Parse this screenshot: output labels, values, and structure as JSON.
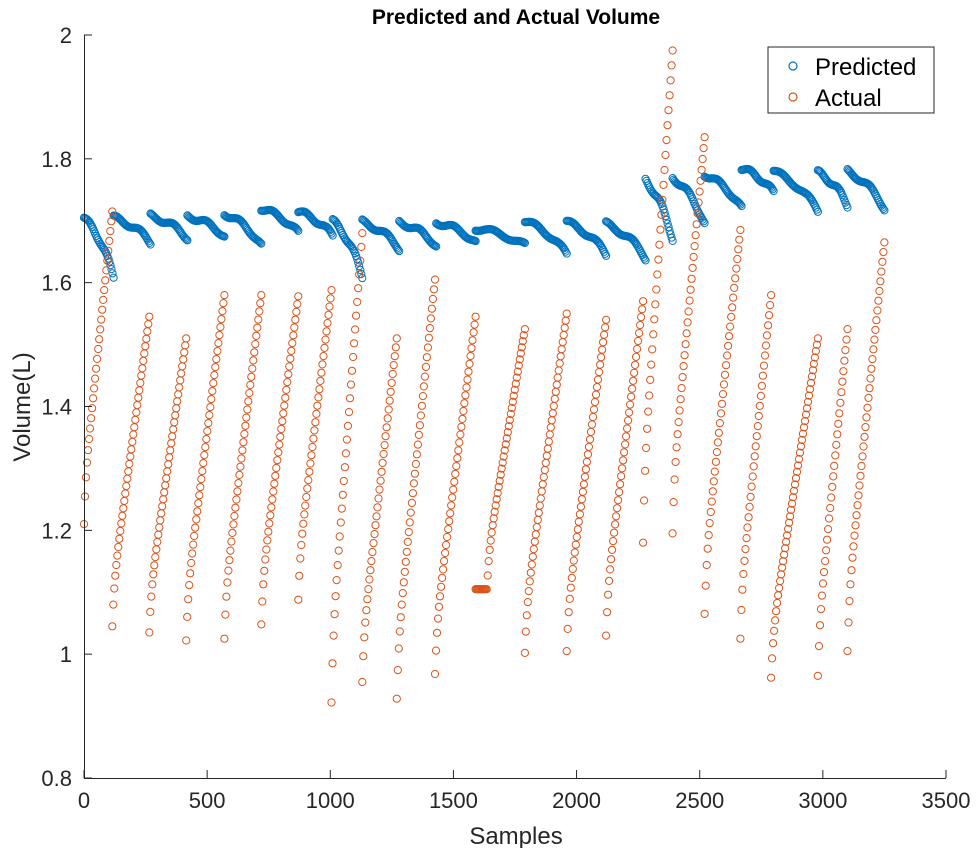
{
  "chart_data": {
    "type": "scatter",
    "title": "Predicted and Actual Volume",
    "xlabel": "Samples",
    "ylabel": "Volume(L)",
    "xlim": [
      0,
      3500
    ],
    "ylim": [
      0.8,
      2.0
    ],
    "x_ticks": [
      "0",
      "500",
      "1000",
      "1500",
      "2000",
      "2500",
      "3000",
      "3500"
    ],
    "y_ticks": [
      "0.8",
      "1",
      "1.2",
      "1.4",
      "1.6",
      "1.8",
      "2"
    ],
    "grid": false,
    "legend_position": "top-right",
    "marker": "open-circle",
    "series": [
      {
        "name": "Predicted",
        "color": "#0072BD",
        "segments": [
          {
            "x0": 0,
            "x1": 120,
            "y0": 1.705,
            "y1": 1.608
          },
          {
            "x0": 120,
            "x1": 270,
            "y0": 1.705,
            "y1": 1.665
          },
          {
            "x0": 270,
            "x1": 420,
            "y0": 1.708,
            "y1": 1.672
          },
          {
            "x0": 420,
            "x1": 570,
            "y0": 1.708,
            "y1": 1.675
          },
          {
            "x0": 570,
            "x1": 720,
            "y0": 1.712,
            "y1": 1.66
          },
          {
            "x0": 720,
            "x1": 870,
            "y0": 1.72,
            "y1": 1.68
          },
          {
            "x0": 870,
            "x1": 1010,
            "y0": 1.715,
            "y1": 1.675
          },
          {
            "x0": 1010,
            "x1": 1130,
            "y0": 1.7,
            "y1": 1.61
          },
          {
            "x0": 1130,
            "x1": 1280,
            "y0": 1.698,
            "y1": 1.655
          },
          {
            "x0": 1280,
            "x1": 1430,
            "y0": 1.698,
            "y1": 1.66
          },
          {
            "x0": 1430,
            "x1": 1590,
            "y0": 1.698,
            "y1": 1.665
          },
          {
            "x0": 1590,
            "x1": 1790,
            "y0": 1.688,
            "y1": 1.66
          },
          {
            "x0": 1790,
            "x1": 1960,
            "y0": 1.7,
            "y1": 1.645
          },
          {
            "x0": 1960,
            "x1": 2120,
            "y0": 1.698,
            "y1": 1.645
          },
          {
            "x0": 2120,
            "x1": 2280,
            "y0": 1.695,
            "y1": 1.64
          },
          {
            "x0": 2280,
            "x1": 2390,
            "y0": 1.765,
            "y1": 1.67
          },
          {
            "x0": 2390,
            "x1": 2520,
            "y0": 1.77,
            "y1": 1.695
          },
          {
            "x0": 2520,
            "x1": 2670,
            "y0": 1.775,
            "y1": 1.72
          },
          {
            "x0": 2670,
            "x1": 2800,
            "y0": 1.785,
            "y1": 1.745
          },
          {
            "x0": 2800,
            "x1": 2980,
            "y0": 1.78,
            "y1": 1.715
          },
          {
            "x0": 2980,
            "x1": 3100,
            "y0": 1.778,
            "y1": 1.725
          },
          {
            "x0": 3100,
            "x1": 3250,
            "y0": 1.78,
            "y1": 1.72
          }
        ]
      },
      {
        "name": "Actual",
        "color": "#D95319",
        "segments": [
          {
            "x0": 0,
            "x1": 115,
            "y0": 1.21,
            "y1": 1.715
          },
          {
            "x0": 115,
            "x1": 265,
            "y0": 1.045,
            "y1": 1.545
          },
          {
            "x0": 265,
            "x1": 415,
            "y0": 1.035,
            "y1": 1.51
          },
          {
            "x0": 415,
            "x1": 570,
            "y0": 1.022,
            "y1": 1.58
          },
          {
            "x0": 570,
            "x1": 720,
            "y0": 1.025,
            "y1": 1.58
          },
          {
            "x0": 720,
            "x1": 870,
            "y0": 1.048,
            "y1": 1.578
          },
          {
            "x0": 870,
            "x1": 1005,
            "y0": 1.088,
            "y1": 1.588
          },
          {
            "x0": 1005,
            "x1": 1130,
            "y0": 0.922,
            "y1": 1.68
          },
          {
            "x0": 1130,
            "x1": 1270,
            "y0": 0.955,
            "y1": 1.51
          },
          {
            "x0": 1270,
            "x1": 1425,
            "y0": 0.928,
            "y1": 1.605
          },
          {
            "x0": 1425,
            "x1": 1590,
            "y0": 0.968,
            "y1": 1.545
          },
          {
            "x0": 1590,
            "x1": 1790,
            "y0": 1.105,
            "y1": 1.525
          },
          {
            "x0": 1790,
            "x1": 1960,
            "y0": 1.002,
            "y1": 1.55
          },
          {
            "x0": 1960,
            "x1": 2120,
            "y0": 1.005,
            "y1": 1.54
          },
          {
            "x0": 2120,
            "x1": 2270,
            "y0": 1.03,
            "y1": 1.57
          },
          {
            "x0": 2270,
            "x1": 2390,
            "y0": 1.18,
            "y1": 1.975
          },
          {
            "x0": 2390,
            "x1": 2520,
            "y0": 1.195,
            "y1": 1.835
          },
          {
            "x0": 2520,
            "x1": 2665,
            "y0": 1.065,
            "y1": 1.685
          },
          {
            "x0": 2665,
            "x1": 2790,
            "y0": 1.025,
            "y1": 1.58
          },
          {
            "x0": 2790,
            "x1": 2980,
            "y0": 0.962,
            "y1": 1.51
          },
          {
            "x0": 2980,
            "x1": 3100,
            "y0": 0.965,
            "y1": 1.525
          },
          {
            "x0": 3100,
            "x1": 3250,
            "y0": 1.005,
            "y1": 1.665
          }
        ]
      }
    ]
  }
}
